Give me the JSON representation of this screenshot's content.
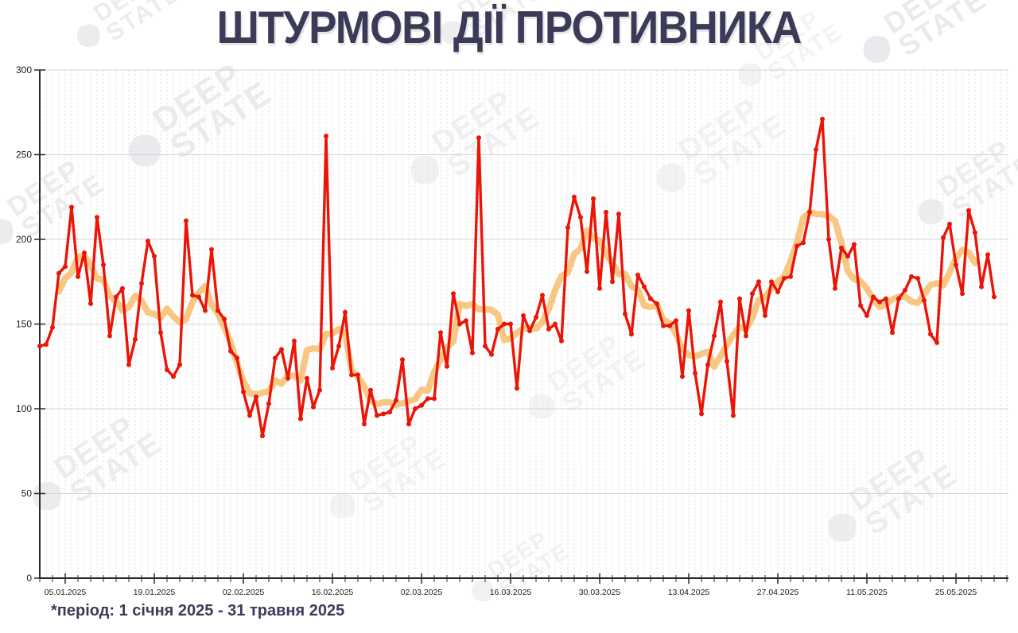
{
  "title": "ШТУРМОВІ ДІЇ ПРОТИВНИКА",
  "footnote": "*період: 1 січня 2025 - 31 травня 2025",
  "watermark": {
    "line1": "DEEP",
    "line2": "STATE"
  },
  "colors": {
    "daily_line": "#eb1407",
    "average_line": "#f7c175",
    "title_text": "#3b3b57",
    "axis": "#2b2b2b",
    "grid_major": "#d6d6d6",
    "grid_vertical": "#e7e7e7"
  },
  "chart_data": {
    "type": "line",
    "title": "ШТУРМОВІ ДІЇ ПРОТИВНИКА",
    "x_start_date": "01.01.2025",
    "x_end_date": "31.05.2025",
    "x_tick_labels": [
      "05.01.2025",
      "19.01.2025",
      "02.02.2025",
      "16.02.2025",
      "02.03.2025",
      "16.03.2025",
      "30.03.2025",
      "13.04.2025",
      "27.04.2025",
      "11.05.2025",
      "25.05.2025"
    ],
    "x_tick_day_indices": [
      4,
      18,
      32,
      46,
      60,
      74,
      88,
      102,
      116,
      130,
      144
    ],
    "ylim": [
      0,
      300
    ],
    "y_ticks": [
      0,
      50,
      100,
      150,
      200,
      250,
      300
    ],
    "grid": "on",
    "legend": "none",
    "series": [
      {
        "name": "daily-assaults",
        "color": "#eb1407",
        "values": [
          137,
          138,
          148,
          180,
          184,
          219,
          178,
          192,
          162,
          213,
          185,
          143,
          166,
          171,
          126,
          141,
          174,
          199,
          190,
          145,
          123,
          119,
          126,
          211,
          167,
          166,
          158,
          194,
          158,
          153,
          134,
          130,
          110,
          96,
          107,
          84,
          103,
          130,
          135,
          118,
          140,
          94,
          118,
          101,
          111,
          261,
          124,
          137,
          157,
          120,
          120,
          91,
          111,
          96,
          97,
          98,
          105,
          129,
          91,
          100,
          102,
          106,
          106,
          145,
          125,
          168,
          150,
          152,
          133,
          260,
          137,
          132,
          147,
          150,
          150,
          112,
          155,
          146,
          154,
          167,
          147,
          150,
          140,
          207,
          225,
          213,
          181,
          224,
          171,
          216,
          175,
          215,
          156,
          144,
          179,
          172,
          165,
          162,
          149,
          149,
          152,
          119,
          158,
          121,
          97,
          126,
          143,
          163,
          128,
          96,
          165,
          143,
          168,
          175,
          155,
          175,
          169,
          177,
          178,
          196,
          198,
          216,
          253,
          271,
          200,
          171,
          195,
          190,
          197,
          161,
          155,
          166,
          163,
          165,
          145,
          165,
          170,
          178,
          177,
          164,
          144,
          139,
          201,
          209,
          185,
          168,
          217,
          204,
          172,
          191,
          166
        ]
      },
      {
        "name": "7-day-average",
        "color": "#f7c175",
        "derived": "7-day centered moving average of daily-assaults"
      }
    ]
  }
}
